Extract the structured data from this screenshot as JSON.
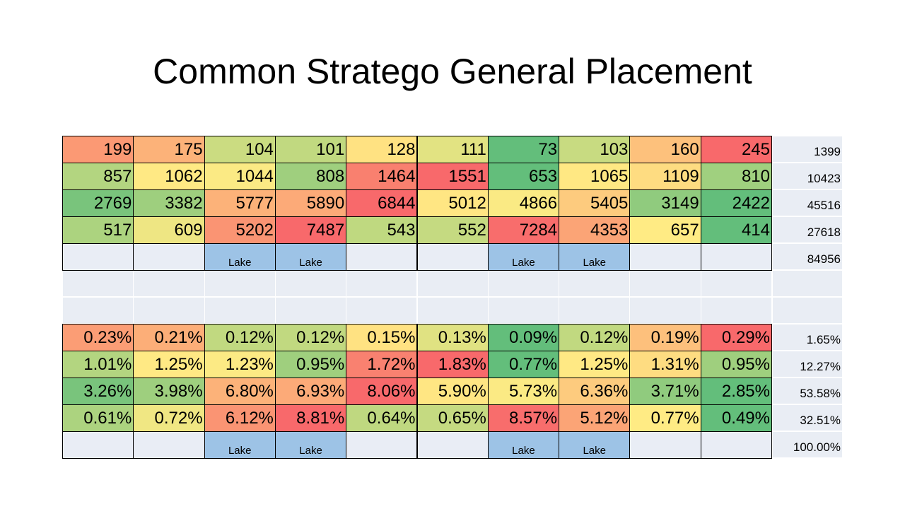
{
  "title": "Common Stratego General Placement",
  "counts": {
    "rows": [
      [
        199,
        175,
        104,
        101,
        128,
        111,
        73,
        103,
        160,
        245
      ],
      [
        857,
        1062,
        1044,
        808,
        1464,
        1551,
        653,
        1065,
        1109,
        810
      ],
      [
        2769,
        3382,
        5777,
        5890,
        6844,
        5012,
        4866,
        5405,
        3149,
        2422
      ],
      [
        517,
        609,
        5202,
        7487,
        543,
        552,
        7284,
        4353,
        657,
        414
      ]
    ],
    "row_totals": [
      1399,
      10423,
      45516,
      27618
    ],
    "lake_row": [
      null,
      null,
      "Lake",
      "Lake",
      null,
      null,
      "Lake",
      "Lake",
      null,
      null
    ],
    "grand_total": 84956
  },
  "percents": {
    "rows": [
      [
        "0.23%",
        "0.21%",
        "0.12%",
        "0.12%",
        "0.15%",
        "0.13%",
        "0.09%",
        "0.12%",
        "0.19%",
        "0.29%"
      ],
      [
        "1.01%",
        "1.25%",
        "1.23%",
        "0.95%",
        "1.72%",
        "1.83%",
        "0.77%",
        "1.25%",
        "1.31%",
        "0.95%"
      ],
      [
        "3.26%",
        "3.98%",
        "6.80%",
        "6.93%",
        "8.06%",
        "5.90%",
        "5.73%",
        "6.36%",
        "3.71%",
        "2.85%"
      ],
      [
        "0.61%",
        "0.72%",
        "6.12%",
        "8.81%",
        "0.64%",
        "0.65%",
        "8.57%",
        "5.12%",
        "0.77%",
        "0.49%"
      ]
    ],
    "row_totals": [
      "1.65%",
      "12.27%",
      "53.58%",
      "32.51%"
    ],
    "lake_row": [
      null,
      null,
      "Lake",
      "Lake",
      null,
      null,
      "Lake",
      "Lake",
      null,
      null
    ],
    "grand_total": "100.00%"
  }
}
